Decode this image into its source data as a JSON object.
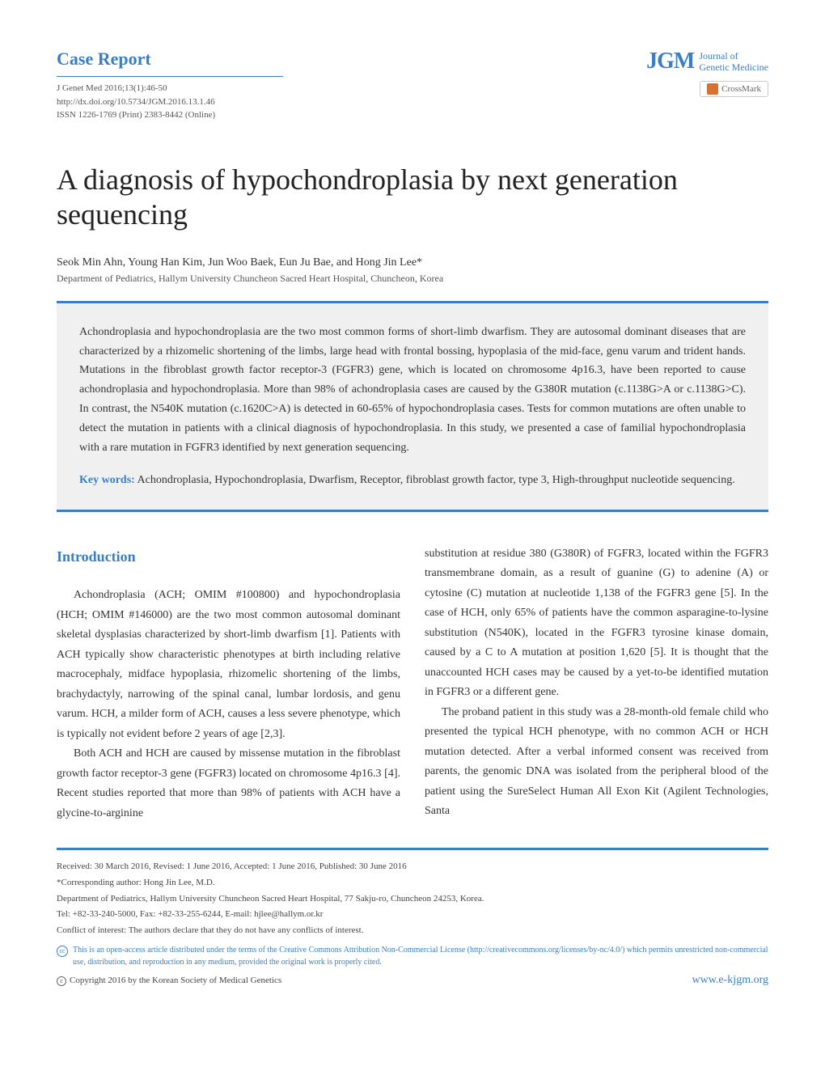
{
  "header": {
    "case_report": "Case Report",
    "citation": "J Genet Med 2016;13(1):46-50",
    "doi": "http://dx.doi.org/10.5734/JGM.2016.13.1.46",
    "issn": "ISSN 1226-1769 (Print) 2383-8442 (Online)",
    "logo_abbr": "JGM",
    "logo_line1": "Journal of",
    "logo_line2": "Genetic Medicine",
    "crossmark": "CrossMark"
  },
  "article": {
    "title": "A diagnosis of hypochondroplasia by next generation sequencing",
    "authors": "Seok Min Ahn, Young Han Kim, Jun Woo Baek, Eun Ju Bae, and Hong Jin Lee*",
    "affiliation": "Department of Pediatrics, Hallym University Chuncheon Sacred Heart Hospital, Chuncheon, Korea"
  },
  "abstract": {
    "text": "Achondroplasia and hypochondroplasia are the two most common forms of short-limb dwarfism. They are autosomal dominant diseases that are characterized by a rhizomelic shortening of the limbs, large head with frontal bossing, hypoplasia of the mid-face, genu varum and trident hands. Mutations in the fibroblast growth factor receptor-3 (FGFR3) gene, which is located on chromosome 4p16.3, have been reported to cause achondroplasia and hypochondroplasia. More than 98% of achondroplasia cases are caused by the G380R mutation (c.1138G>A or c.1138G>C). In contrast, the N540K mutation (c.1620C>A) is detected in 60-65% of hypochondroplasia cases. Tests for common mutations are often unable to detect the mutation in patients with a clinical diagnosis of hypochondroplasia. In this study, we presented a case of familial hypochondroplasia with a rare mutation in FGFR3 identified by next generation sequencing.",
    "keywords_label": "Key words:",
    "keywords": " Achondroplasia, Hypochondroplasia, Dwarfism, Receptor, fibroblast growth factor, type 3, High-throughput nucleotide sequencing."
  },
  "body": {
    "intro_heading": "Introduction",
    "col1_p1": "Achondroplasia (ACH; OMIM #100800) and hypochondroplasia (HCH; OMIM #146000) are the two most common autosomal dominant skeletal dysplasias characterized by short-limb dwarfism [1]. Patients with ACH typically show characteristic phenotypes at birth including relative macrocephaly, midface hypoplasia, rhizomelic shortening of the limbs, brachydactyly, narrowing of the spinal canal, lumbar lordosis, and genu varum. HCH, a milder form of ACH, causes a less severe phenotype, which is typically not evident before 2 years of age [2,3].",
    "col1_p2": "Both ACH and HCH are caused by missense mutation in the fibroblast growth factor receptor-3 gene (FGFR3) located on chromosome 4p16.3 [4]. Recent studies reported that more than 98% of patients with ACH have a glycine-to-arginine",
    "col2_p1": "substitution at residue 380 (G380R) of FGFR3, located within the FGFR3 transmembrane domain, as a result of guanine (G) to adenine (A) or cytosine (C) mutation at nucleotide 1,138 of the FGFR3 gene [5]. In the case of HCH, only 65% of patients have the common asparagine-to-lysine substitution (N540K), located in the FGFR3 tyrosine kinase domain, caused by a C to A mutation at position 1,620 [5]. It is thought that the unaccounted HCH cases may be caused by a yet-to-be identified mutation in FGFR3 or a different gene.",
    "col2_p2": "The proband patient in this study was a 28-month-old female child who presented the typical HCH phenotype, with no common ACH or HCH mutation detected. After a verbal informed consent was received from parents, the genomic DNA was isolated from the peripheral blood of the patient using the SureSelect Human All Exon Kit (Agilent Technologies, Santa"
  },
  "footer": {
    "dates": "Received: 30 March 2016, Revised: 1 June 2016, Accepted: 1 June 2016, Published: 30 June 2016",
    "corresponding": "*Corresponding author: Hong Jin Lee, M.D.",
    "address": "Department of Pediatrics, Hallym University Chuncheon Sacred Heart Hospital, 77 Sakju-ro, Chuncheon 24253, Korea.",
    "contact": "Tel: +82-33-240-5000, Fax: +82-33-255-6244, E-mail: hjlee@hallym.or.kr",
    "conflict": "Conflict of interest: The authors declare that they do not have any conflicts of interest.",
    "license": "This is an open-access article distributed under the terms of the Creative Commons Attribution Non-Commercial License (http://creativecommons.org/licenses/by-nc/4.0/) which permits unrestricted non-commercial use, distribution, and reproduction in any medium, provided the original work is properly cited.",
    "copyright": "Copyright 2016 by the Korean Society of Medical Genetics",
    "website": "www.e-kjgm.org"
  },
  "colors": {
    "accent": "#3a7fc4",
    "bg_abstract": "#f0f0f0",
    "text": "#333333"
  }
}
